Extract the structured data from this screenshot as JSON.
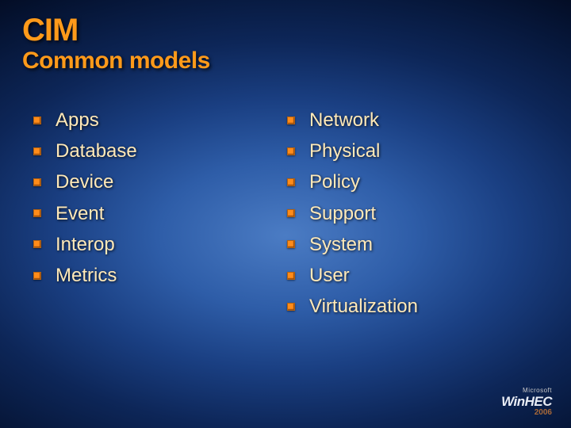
{
  "title": "CIM",
  "subtitle": "Common models",
  "columns": {
    "left": [
      "Apps",
      "Database",
      "Device",
      "Event",
      "Interop",
      "Metrics"
    ],
    "right": [
      "Network",
      "Physical",
      "Policy",
      "Support",
      "System",
      "User",
      "Virtualization"
    ]
  },
  "logo": {
    "brand": "Microsoft",
    "name": "WinHEC",
    "year": "2006"
  },
  "style": {
    "title_color": "#ff9a1a",
    "subtitle_color": "#ff9a1a",
    "item_color": "#ffe9b8",
    "bullet_color": "#ff8c1a",
    "title_fontsize": 40,
    "subtitle_fontsize": 30,
    "item_fontsize": 24,
    "background_gradient": [
      "#4b7cc4",
      "#2e5da8",
      "#1a3f82",
      "#0d2658",
      "#061638",
      "#020a1f"
    ]
  }
}
